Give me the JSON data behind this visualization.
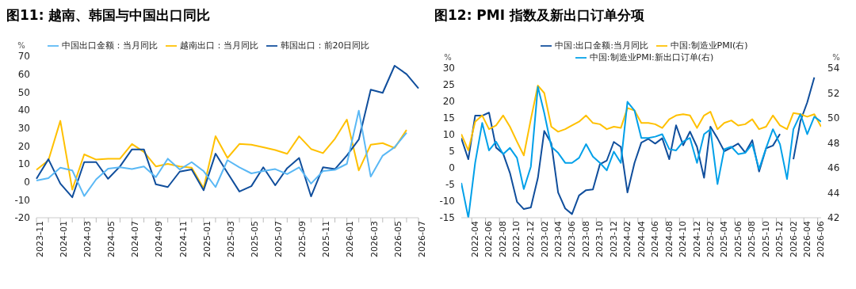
{
  "chart_data": [
    {
      "type": "line",
      "title": "图11: 越南、韩国与中国出口同比",
      "ylabel": "%",
      "legend": "top",
      "categories": [
        "2023-11",
        null,
        "2024-01",
        null,
        "2024-03",
        null,
        "2024-05",
        null,
        "2024-07",
        null,
        "2024-09",
        null,
        "2024-11",
        null,
        "2025-01",
        null,
        "2025-03",
        null,
        "2025-05",
        null,
        "2025-07",
        null,
        "2025-09",
        null,
        "2025-11",
        null,
        "2026-01",
        null,
        "2026-03",
        null,
        "2026-05",
        null,
        "2026-07"
      ],
      "ylim": [
        -20,
        70
      ],
      "yticks": [
        -20,
        -10,
        0,
        10,
        20,
        30,
        40,
        50,
        60,
        70
      ],
      "series": [
        {
          "name": "越南出口：当月同比",
          "color": "#ffc000",
          "values": [
            6.7,
            12,
            34,
            -4.3,
            15.3,
            12.4,
            12.9,
            12.9,
            21.1,
            16.7,
            8.6,
            10,
            8.6,
            7.9,
            -3.6,
            25.4,
            13.3,
            21.1,
            20.7,
            19.3,
            17.7,
            15.6,
            25.4,
            18.3,
            16,
            24,
            34.7,
            6.4,
            20.7,
            21.6,
            18.9,
            28.9,
            null
          ]
        },
        {
          "name": "韩国出口：前20日同比",
          "color": "#104e9c",
          "values": [
            1.7,
            12.6,
            -1,
            -8.6,
            11,
            11,
            1.7,
            8.6,
            18.1,
            18.1,
            -1.4,
            -2.9,
            5.7,
            6.9,
            -4.7,
            15.7,
            5,
            -5.4,
            -2.4,
            8.1,
            -1.9,
            7.6,
            13.3,
            -8.1,
            8.1,
            7.1,
            14.7,
            23.6,
            51.4,
            49.6,
            64.7,
            60,
            52.1
          ]
        },
        {
          "name": "中国出口金额：当月同比",
          "color": "#5ab8f5",
          "values": [
            0.7,
            2.1,
            7.9,
            6.4,
            -7.9,
            1.4,
            7.4,
            8.1,
            7.1,
            8.6,
            2.6,
            12.9,
            6.9,
            11,
            6,
            -2.9,
            12.1,
            8.1,
            4.7,
            6,
            7.1,
            4.3,
            8.1,
            -1,
            6,
            6.7,
            10,
            39.7,
            2.9,
            14.6,
            19.3,
            27.4,
            null
          ]
        }
      ]
    },
    {
      "type": "line",
      "title": "图12: PMI 指数及新出口订单分项",
      "ylabel": "%",
      "y2label": "%",
      "legend": "top",
      "x": [
        "2022-02-28",
        "2022-03-31",
        "2022-04-30",
        "2022-05-31",
        "2022-06-30",
        "2022-07-31",
        "2022-08-31",
        "2022-09-30",
        "2022-10-31",
        "2022-11-30",
        "2022-12-31",
        "2023-01-31",
        "2023-02-28",
        "2023-03-31",
        "2023-04-30",
        "2023-05-31",
        "2023-06-30",
        "2023-07-31",
        "2023-08-31",
        "2023-09-30",
        "2023-10-31",
        "2023-11-30",
        "2023-12-31",
        "2024-01-31",
        "2024-02-29",
        "2024-03-31",
        "2024-04-30",
        "2024-05-31",
        "2024-06-30",
        "2024-07-31",
        "2024-08-31",
        "2024-09-30",
        "2024-10-31",
        "2024-11-30",
        "2024-12-31",
        "2025-01-31",
        "2025-02-28",
        "2025-03-31",
        "2025-04-30",
        "2025-05-31",
        "2025-06-30",
        "2025-07-31",
        "2025-08-31",
        "2025-09-30",
        "2025-10-31",
        "2025-11-30",
        "2025-12-31",
        "2026-01-31",
        "2026-02-28",
        "2026-03-31",
        "2026-04-30",
        "2026-05-31",
        "2026-06-30"
      ],
      "xlim": [
        "2022-02-28",
        "2026-06-30"
      ],
      "xticks": [
        {
          "value": "2022-04-15",
          "label": "2022-04"
        },
        {
          "value": "2022-06-15",
          "label": "2022-06"
        },
        {
          "value": "2022-08-15",
          "label": "2022-08"
        },
        {
          "value": "2022-10-15",
          "label": "2022-10"
        },
        {
          "value": "2022-12-15",
          "label": "2022-12"
        },
        {
          "value": "2023-02-15",
          "label": "2023-02"
        },
        {
          "value": "2023-04-15",
          "label": "2023-04"
        },
        {
          "value": "2023-06-15",
          "label": "2023-06"
        },
        {
          "value": "2023-08-15",
          "label": "2023-08"
        },
        {
          "value": "2023-10-15",
          "label": "2023-10"
        },
        {
          "value": "2023-12-15",
          "label": "2023-12"
        },
        {
          "value": "2024-02-15",
          "label": "2024-02"
        },
        {
          "value": "2024-04-15",
          "label": "2024-04"
        },
        {
          "value": "2024-06-15",
          "label": "2024-06"
        },
        {
          "value": "2024-08-15",
          "label": "2024-08"
        },
        {
          "value": "2024-10-15",
          "label": "2024-10"
        },
        {
          "value": "2024-12-15",
          "label": "2024-12"
        },
        {
          "value": "2025-02-15",
          "label": "2025-02"
        },
        {
          "value": "2025-04-15",
          "label": "2025-04"
        },
        {
          "value": "2025-06-15",
          "label": "2025-06"
        },
        {
          "value": "2025-08-15",
          "label": "2025-08"
        },
        {
          "value": "2025-10-15",
          "label": "2025-10"
        },
        {
          "value": "2025-12-15",
          "label": "2025-12"
        },
        {
          "value": "2026-02-15",
          "label": "2026-02"
        },
        {
          "value": "2026-04-15",
          "label": "2026-04"
        },
        {
          "value": "2026-06-15",
          "label": "2026-06"
        }
      ],
      "ylim": [
        -15,
        30
      ],
      "yticks": [
        -15,
        -10,
        -5,
        0,
        5,
        10,
        15,
        20,
        25,
        30
      ],
      "y2lim": [
        42,
        54
      ],
      "y2ticks": [
        42,
        44,
        46,
        48,
        50,
        52,
        54
      ],
      "series": [
        {
          "name": "中国:出口金额:当月同比",
          "color": "#104e9c",
          "values": [
            8.9,
            2.6,
            15.7,
            15.7,
            16.6,
            6.1,
            4.3,
            -1.5,
            -10.2,
            -12.4,
            -11.9,
            -3,
            11.1,
            7.4,
            -7.4,
            -12.2,
            -13.9,
            -8.3,
            -6.7,
            -6.5,
            1.1,
            2.2,
            7.8,
            6.3,
            -7.4,
            1.5,
            7.6,
            8.7,
            7.3,
            8.9,
            2.6,
            12.8,
            6.8,
            10.9,
            6.3,
            -3,
            12.4,
            8.9,
            5,
            6.1,
            7.3,
            4.6,
            8.3,
            -1.1,
            5.9,
            6.7,
            10.2,
            null,
            2.6,
            14.1,
            19.7,
            27.2,
            null
          ]
        },
        {
          "name": "中国:制造业PMI(右)",
          "color": "#ffc000",
          "axis": "y2",
          "values": [
            48.7,
            47.4,
            49.7,
            50.2,
            49.1,
            49.4,
            50.2,
            49.3,
            48.1,
            47,
            49.9,
            52.6,
            52,
            49.3,
            48.9,
            49.1,
            49.4,
            49.7,
            50.2,
            49.6,
            49.5,
            49.1,
            49.3,
            49.2,
            50.8,
            50.6,
            49.6,
            49.6,
            49.5,
            49.2,
            49.9,
            50.2,
            50.3,
            50.2,
            49.2,
            50.2,
            50.5,
            49.1,
            49.6,
            49.8,
            49.4,
            49.5,
            49.9,
            49.1,
            49.3,
            50.2,
            49.4,
            49.1,
            50.4,
            50.3,
            50.1,
            50.3,
            49.3
          ]
        },
        {
          "name": "中国:制造业PMI:新出口订单(右)",
          "color": "#00a0e9",
          "axis": "y2",
          "values": [
            44.8,
            42,
            46.4,
            49.6,
            47.4,
            48.1,
            47.1,
            47.6,
            46.8,
            44.3,
            46.1,
            52.5,
            50.4,
            47.7,
            47.2,
            46.4,
            46.4,
            46.8,
            47.9,
            46.9,
            46.4,
            45.8,
            47.3,
            46.4,
            51.3,
            50.6,
            48.4,
            48.4,
            48.5,
            48.7,
            47.5,
            47.4,
            48.1,
            48.4,
            46.4,
            48.7,
            49.1,
            44.7,
            47.5,
            47.7,
            47.1,
            47.2,
            47.9,
            45.9,
            47.6,
            49.1,
            47.9,
            45.1,
            49.1,
            50.3,
            48.7,
            50.1,
            49.7
          ]
        }
      ]
    }
  ]
}
